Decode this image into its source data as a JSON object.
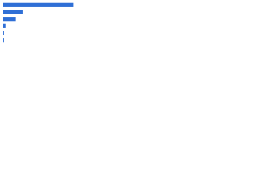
{
  "chart_data": {
    "type": "bar",
    "orientation": "horizontal",
    "categories": [
      null,
      null,
      null,
      null,
      null,
      null
    ],
    "values": [
      95,
      26,
      17,
      3,
      1,
      1
    ],
    "color": "#2f6fd6",
    "xlim": [
      0,
      100
    ]
  }
}
